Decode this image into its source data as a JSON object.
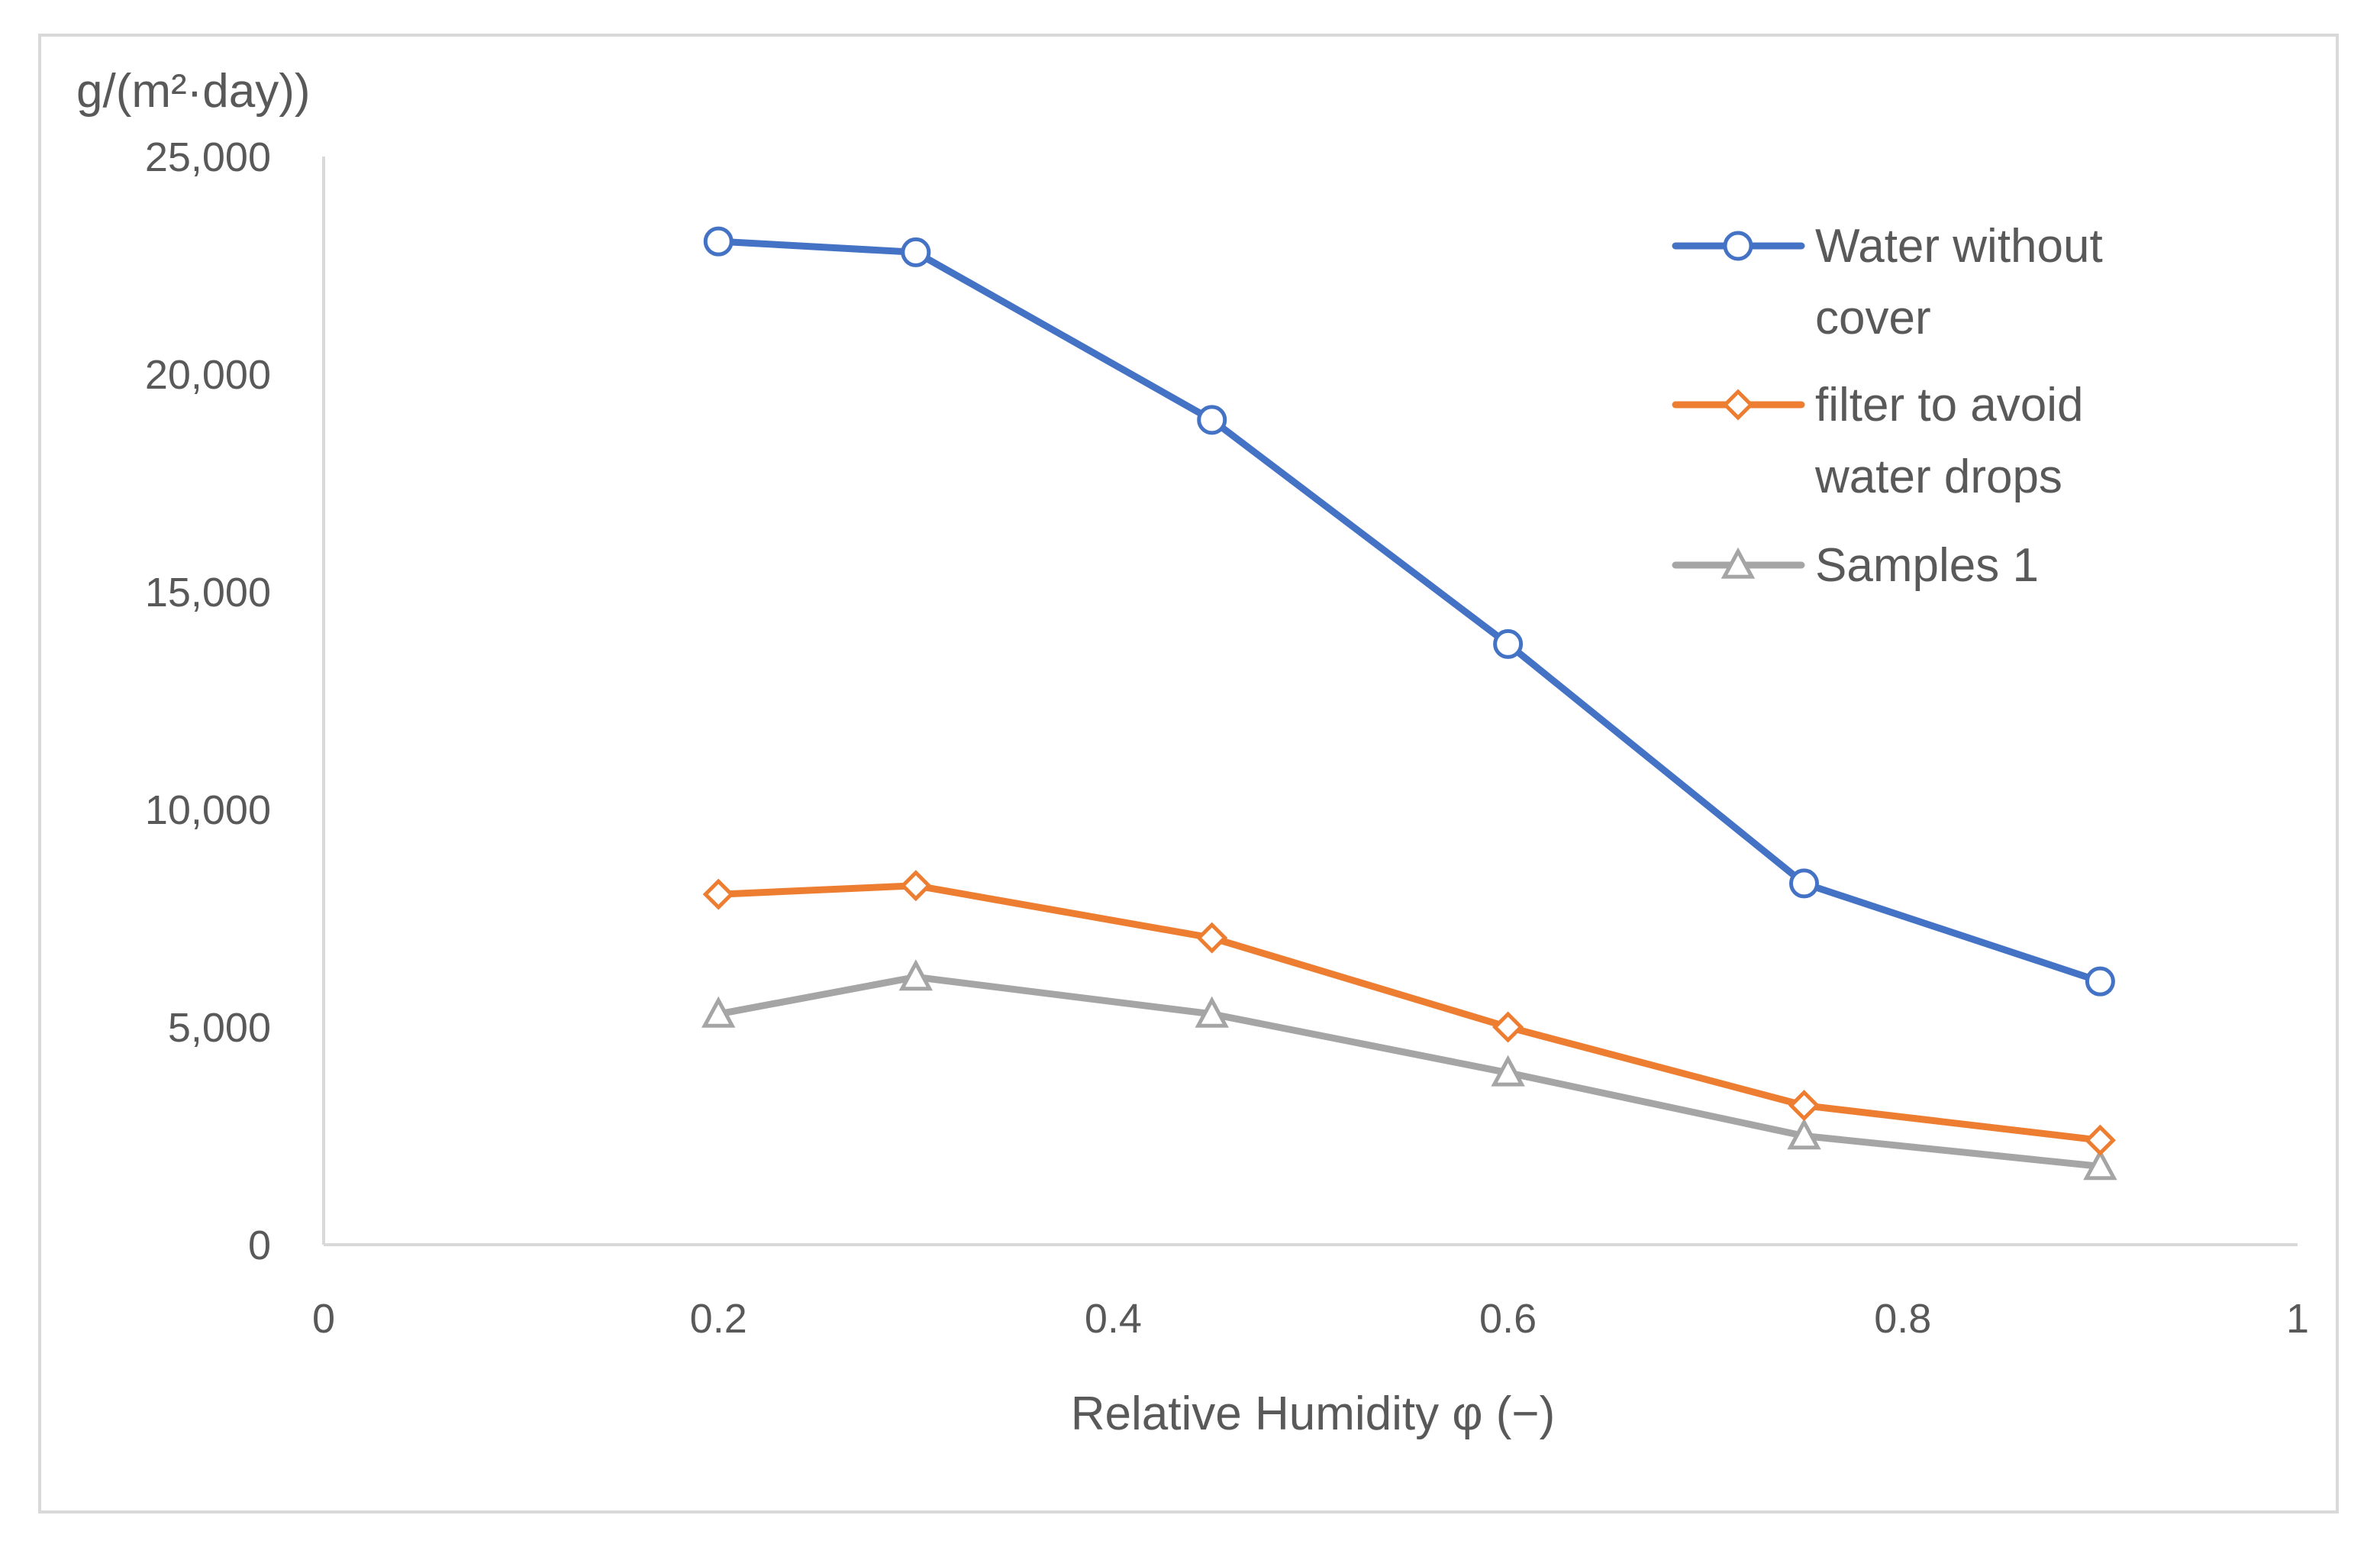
{
  "chart_data": {
    "type": "line",
    "title": "",
    "xlabel": "Relative Humidity φ (−)",
    "ylabel": "g/(m²·day))",
    "xlim": [
      0,
      1
    ],
    "ylim": [
      0,
      25000
    ],
    "x_ticks": [
      "0",
      "0.2",
      "0.4",
      "0.6",
      "0.8",
      "1"
    ],
    "x_tick_values": [
      0,
      0.2,
      0.4,
      0.6,
      0.8,
      1
    ],
    "y_ticks": [
      "0",
      "5,000",
      "10,000",
      "15,000",
      "20,000",
      "25,000"
    ],
    "y_tick_values": [
      0,
      5000,
      10000,
      15000,
      20000,
      25000
    ],
    "grid": false,
    "legend_position": "top-right",
    "x": [
      0.2,
      0.3,
      0.45,
      0.6,
      0.75,
      0.9
    ],
    "series": [
      {
        "name": "Water without cover",
        "legend_lines": [
          "Water without",
          "cover"
        ],
        "marker": "circle",
        "color": "#4472c4",
        "values": [
          23050,
          22800,
          18950,
          13800,
          8300,
          6050
        ]
      },
      {
        "name": "filter to avoid water drops",
        "legend_lines": [
          "filter to avoid",
          "water drops"
        ],
        "marker": "diamond",
        "color": "#ed7d31",
        "values": [
          8050,
          8250,
          7050,
          5000,
          3200,
          2400
        ]
      },
      {
        "name": "Samples 1",
        "legend_lines": [
          "Samples 1"
        ],
        "marker": "triangle",
        "color": "#a5a5a5",
        "values": [
          5300,
          6150,
          5300,
          3950,
          2500,
          1800
        ]
      }
    ]
  }
}
